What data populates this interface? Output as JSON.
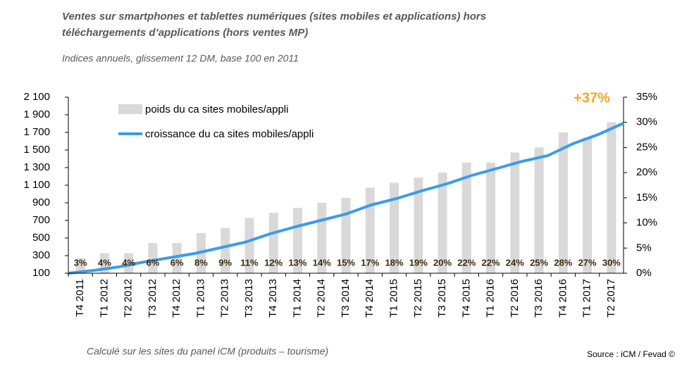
{
  "chart_data": {
    "type": "bar_line",
    "title": "Ventes sur smartphones et tablettes numériques (sites mobiles et applications) hors",
    "title_line2": "téléchargements d’applications (hors ventes MP)",
    "subtitle": "Indices annuels, glissement 12 DM, base 100 en 2011",
    "footnote": "Calculé sur les sites du panel iCM (produits – tourisme)",
    "source": "Source : iCM / Fevad ©",
    "annotation": "+37%",
    "annotation_color": "#f5a623",
    "categories": [
      "T4 2011",
      "T1 2012",
      "T2 2012",
      "T3 2012",
      "T4 2012",
      "T1 2013",
      "T2 2013",
      "T3 2013",
      "T4 2013",
      "T1 2014",
      "T2 2014",
      "T3 2014",
      "T4 2014",
      "T1 2015",
      "T2 2015",
      "T3 2015",
      "T4 2015",
      "T1 2016",
      "T2 2016",
      "T3 2016",
      "T4 2016",
      "T1 2017",
      "T2 2017"
    ],
    "series": [
      {
        "name": "poids du ca sites mobiles/appli",
        "type": "bar",
        "axis": "y2",
        "color": "#d9d9d9",
        "values": [
          3,
          4,
          4,
          6,
          6,
          8,
          9,
          11,
          12,
          13,
          14,
          15,
          17,
          18,
          19,
          20,
          22,
          22,
          24,
          25,
          28,
          27,
          30
        ],
        "value_labels": [
          "3%",
          "4%",
          "4%",
          "6%",
          "6%",
          "8%",
          "9%",
          "11%",
          "12%",
          "13%",
          "14%",
          "15%",
          "17%",
          "18%",
          "19%",
          "20%",
          "22%",
          "22%",
          "24%",
          "25%",
          "28%",
          "27%",
          "30%"
        ]
      },
      {
        "name": "croissance du ca sites mobiles/appli",
        "type": "line",
        "axis": "y",
        "color": "#3c9ce8",
        "values": [
          100,
          132,
          172,
          228,
          276,
          324,
          388,
          452,
          548,
          628,
          700,
          772,
          876,
          948,
          1036,
          1116,
          1212,
          1292,
          1372,
          1436,
          1572,
          1676,
          1804
        ]
      }
    ],
    "ylim": [
      100,
      2100
    ],
    "yticks": [
      100,
      300,
      500,
      700,
      900,
      {
        "value": 1100,
        "label": "1 100"
      },
      {
        "value": 1300,
        "label": "1 300"
      },
      {
        "value": 1500,
        "label": "1 500"
      },
      {
        "value": 1700,
        "label": "1 700"
      },
      {
        "value": 1900,
        "label": "1 900"
      },
      {
        "value": 2100,
        "label": "2 100"
      }
    ],
    "y2lim": [
      0,
      35
    ],
    "y2ticks": [
      {
        "value": 0,
        "label": "0%"
      },
      {
        "value": 5,
        "label": "5%"
      },
      {
        "value": 10,
        "label": "10%"
      },
      {
        "value": 15,
        "label": "15%"
      },
      {
        "value": 20,
        "label": "20%"
      },
      {
        "value": 25,
        "label": "25%"
      },
      {
        "value": 30,
        "label": "30%"
      },
      {
        "value": 35,
        "label": "35%"
      }
    ]
  }
}
